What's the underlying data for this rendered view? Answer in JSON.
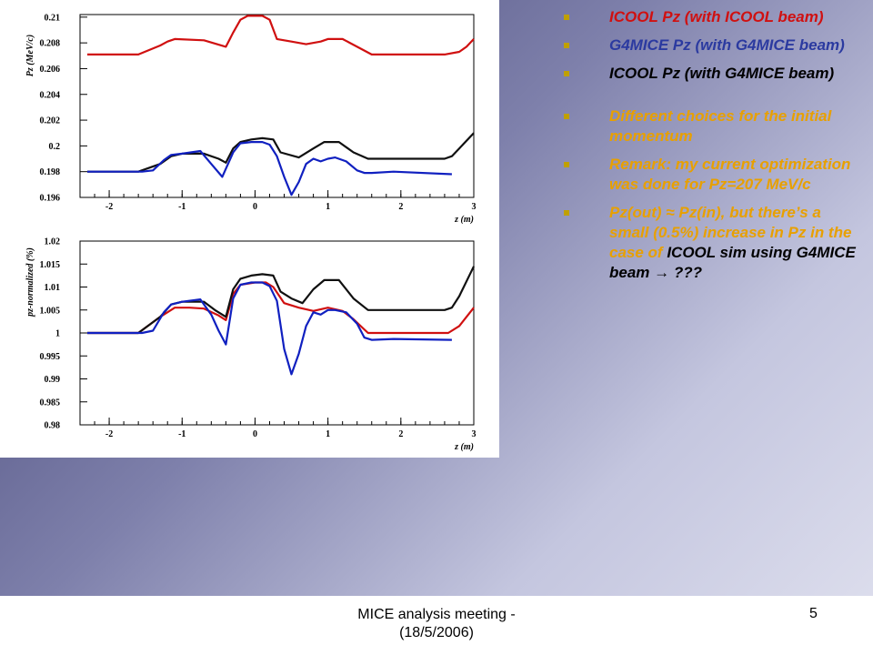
{
  "chart_data": [
    {
      "type": "line",
      "xlabel": "z (m)",
      "ylabel": "Pz (MeV/c)",
      "xlim": [
        -2.4,
        3.0
      ],
      "ylim": [
        0.196,
        0.2102
      ],
      "xticks": [
        "-2",
        "-1",
        "0",
        "1",
        "2",
        "3"
      ],
      "yticks": [
        "0.196",
        "0.198",
        "0.2",
        "0.202",
        "0.204",
        "0.206",
        "0.208",
        "0.21"
      ],
      "grid": false,
      "series": [
        {
          "color": "#d01010",
          "points": [
            [
              -2.3,
              0.2071
            ],
            [
              -1.6,
              0.2071
            ],
            [
              -1.3,
              0.2078
            ],
            [
              -1.2,
              0.2081
            ],
            [
              -1.1,
              0.2083
            ],
            [
              -0.7,
              0.2082
            ],
            [
              -0.4,
              0.2077
            ],
            [
              -0.3,
              0.2088
            ],
            [
              -0.2,
              0.2098
            ],
            [
              -0.1,
              0.2101
            ],
            [
              0.1,
              0.2101
            ],
            [
              0.2,
              0.2098
            ],
            [
              0.3,
              0.2083
            ],
            [
              0.5,
              0.2081
            ],
            [
              0.7,
              0.2079
            ],
            [
              0.9,
              0.2081
            ],
            [
              1.0,
              0.2083
            ],
            [
              1.2,
              0.2083
            ],
            [
              1.3,
              0.208
            ],
            [
              1.6,
              0.2071
            ],
            [
              2.6,
              0.2071
            ],
            [
              2.8,
              0.2073
            ],
            [
              2.9,
              0.2077
            ],
            [
              3.0,
              0.2083
            ]
          ]
        },
        {
          "color": "#101010",
          "points": [
            [
              -2.3,
              0.198
            ],
            [
              -1.6,
              0.198
            ],
            [
              -1.3,
              0.1986
            ],
            [
              -1.15,
              0.1992
            ],
            [
              -1.0,
              0.1994
            ],
            [
              -0.7,
              0.1994
            ],
            [
              -0.5,
              0.199
            ],
            [
              -0.4,
              0.1987
            ],
            [
              -0.3,
              0.1998
            ],
            [
              -0.2,
              0.2003
            ],
            [
              -0.05,
              0.2005
            ],
            [
              0.1,
              0.2006
            ],
            [
              0.25,
              0.2005
            ],
            [
              0.35,
              0.1995
            ],
            [
              0.6,
              0.1991
            ],
            [
              0.8,
              0.1998
            ],
            [
              0.95,
              0.2003
            ],
            [
              1.15,
              0.2003
            ],
            [
              1.35,
              0.1995
            ],
            [
              1.55,
              0.199
            ],
            [
              2.6,
              0.199
            ],
            [
              2.7,
              0.1992
            ],
            [
              2.8,
              0.1998
            ],
            [
              3.0,
              0.201
            ]
          ]
        },
        {
          "color": "#1020c0",
          "points": [
            [
              -2.3,
              0.198
            ],
            [
              -1.55,
              0.198
            ],
            [
              -1.4,
              0.1981
            ],
            [
              -1.25,
              0.1989
            ],
            [
              -1.15,
              0.1993
            ],
            [
              -1.0,
              0.1994
            ],
            [
              -0.75,
              0.1996
            ],
            [
              -0.6,
              0.1986
            ],
            [
              -0.45,
              0.1976
            ],
            [
              -0.3,
              0.1995
            ],
            [
              -0.2,
              0.2002
            ],
            [
              -0.05,
              0.2003
            ],
            [
              0.1,
              0.2003
            ],
            [
              0.2,
              0.2001
            ],
            [
              0.3,
              0.1992
            ],
            [
              0.4,
              0.1976
            ],
            [
              0.5,
              0.1962
            ],
            [
              0.6,
              0.1972
            ],
            [
              0.7,
              0.1986
            ],
            [
              0.8,
              0.199
            ],
            [
              0.9,
              0.1988
            ],
            [
              1.0,
              0.199
            ],
            [
              1.1,
              0.1991
            ],
            [
              1.25,
              0.1988
            ],
            [
              1.4,
              0.1981
            ],
            [
              1.5,
              0.1979
            ],
            [
              1.6,
              0.1979
            ],
            [
              1.9,
              0.198
            ],
            [
              2.7,
              0.1978
            ]
          ]
        }
      ]
    },
    {
      "type": "line",
      "xlabel": "z (m)",
      "ylabel": "pz-normalized (%)",
      "xlim": [
        -2.4,
        3.0
      ],
      "ylim": [
        0.98,
        1.02
      ],
      "xticks": [
        "-2",
        "-1",
        "0",
        "1",
        "2",
        "3"
      ],
      "yticks": [
        "0.98",
        "0.985",
        "0.99",
        "0.995",
        "1",
        "1.005",
        "1.01",
        "1.015",
        "1.02"
      ],
      "grid": false,
      "series": [
        {
          "color": "#d01010",
          "points": [
            [
              -2.3,
              1.0
            ],
            [
              -1.6,
              1.0
            ],
            [
              -1.3,
              1.0035
            ],
            [
              -1.1,
              1.0055
            ],
            [
              -0.9,
              1.0055
            ],
            [
              -0.7,
              1.0053
            ],
            [
              -0.5,
              1.0038
            ],
            [
              -0.4,
              1.0028
            ],
            [
              -0.3,
              1.0085
            ],
            [
              -0.2,
              1.0105
            ],
            [
              0.0,
              1.011
            ],
            [
              0.15,
              1.011
            ],
            [
              0.25,
              1.01
            ],
            [
              0.4,
              1.0065
            ],
            [
              0.6,
              1.0055
            ],
            [
              0.8,
              1.0048
            ],
            [
              1.0,
              1.0055
            ],
            [
              1.2,
              1.0048
            ],
            [
              1.35,
              1.003
            ],
            [
              1.55,
              1.0
            ],
            [
              2.65,
              1.0
            ],
            [
              2.8,
              1.0015
            ],
            [
              2.9,
              1.0035
            ],
            [
              3.0,
              1.0055
            ]
          ]
        },
        {
          "color": "#101010",
          "points": [
            [
              -2.3,
              1.0
            ],
            [
              -1.6,
              1.0
            ],
            [
              -1.3,
              1.0035
            ],
            [
              -1.15,
              1.0062
            ],
            [
              -1.0,
              1.0068
            ],
            [
              -0.7,
              1.0068
            ],
            [
              -0.55,
              1.005
            ],
            [
              -0.4,
              1.0035
            ],
            [
              -0.3,
              1.0095
            ],
            [
              -0.2,
              1.0118
            ],
            [
              -0.05,
              1.0125
            ],
            [
              0.1,
              1.0128
            ],
            [
              0.25,
              1.0125
            ],
            [
              0.35,
              1.009
            ],
            [
              0.5,
              1.0075
            ],
            [
              0.65,
              1.0065
            ],
            [
              0.8,
              1.0095
            ],
            [
              0.95,
              1.0115
            ],
            [
              1.15,
              1.0115
            ],
            [
              1.35,
              1.0075
            ],
            [
              1.55,
              1.005
            ],
            [
              2.6,
              1.005
            ],
            [
              2.7,
              1.0055
            ],
            [
              2.8,
              1.008
            ],
            [
              3.0,
              1.0145
            ]
          ]
        },
        {
          "color": "#1020c0",
          "points": [
            [
              -2.3,
              1.0
            ],
            [
              -1.55,
              1.0
            ],
            [
              -1.4,
              1.0005
            ],
            [
              -1.25,
              1.0045
            ],
            [
              -1.15,
              1.0062
            ],
            [
              -1.0,
              1.0068
            ],
            [
              -0.75,
              1.0073
            ],
            [
              -0.6,
              1.004
            ],
            [
              -0.5,
              1.0005
            ],
            [
              -0.4,
              0.9975
            ],
            [
              -0.3,
              1.0075
            ],
            [
              -0.2,
              1.0105
            ],
            [
              -0.05,
              1.011
            ],
            [
              0.1,
              1.011
            ],
            [
              0.2,
              1.0102
            ],
            [
              0.3,
              1.007
            ],
            [
              0.4,
              0.9965
            ],
            [
              0.5,
              0.991
            ],
            [
              0.6,
              0.9955
            ],
            [
              0.7,
              1.0015
            ],
            [
              0.8,
              1.0045
            ],
            [
              0.9,
              1.004
            ],
            [
              1.0,
              1.005
            ],
            [
              1.1,
              1.005
            ],
            [
              1.25,
              1.0045
            ],
            [
              1.4,
              1.002
            ],
            [
              1.5,
              0.999
            ],
            [
              1.6,
              0.9985
            ],
            [
              1.9,
              0.9987
            ],
            [
              2.7,
              0.9985
            ]
          ]
        }
      ]
    }
  ],
  "bullets": [
    {
      "text": "ICOOL Pz (with ICOOL beam)",
      "color": "#d01010",
      "marker_color": "#c0a000"
    },
    {
      "text": "G4MICE Pz (with G4MICE beam)",
      "color": "#2b3aa0",
      "marker_color": "#c0a000"
    },
    {
      "text": "ICOOL Pz (with G4MICE beam)",
      "color": "#000000",
      "marker_color": "#c0a000"
    },
    {
      "text": "Different choices for the initial momentum",
      "color": "#e8a000",
      "marker_color": "#c0a000"
    },
    {
      "text": "Remark: my current optimization was done for Pz=207 MeV/c",
      "color": "#e8a000",
      "marker_color": "#c0a000"
    }
  ],
  "last_bullet": {
    "part1": "Pz(out) ≈ Pz(in), but there’s a small (0.5%) increase in Pz in the case of ",
    "part2": "ICOOL sim using G4MICE beam ",
    "arrow": "→",
    "part3": " ???",
    "color_part1": "#e8a000",
    "color_part2": "#000000",
    "marker_color": "#c0a000"
  },
  "footer": {
    "text": "MICE analysis meeting - (18/5/2006)",
    "slide_number": "5"
  }
}
